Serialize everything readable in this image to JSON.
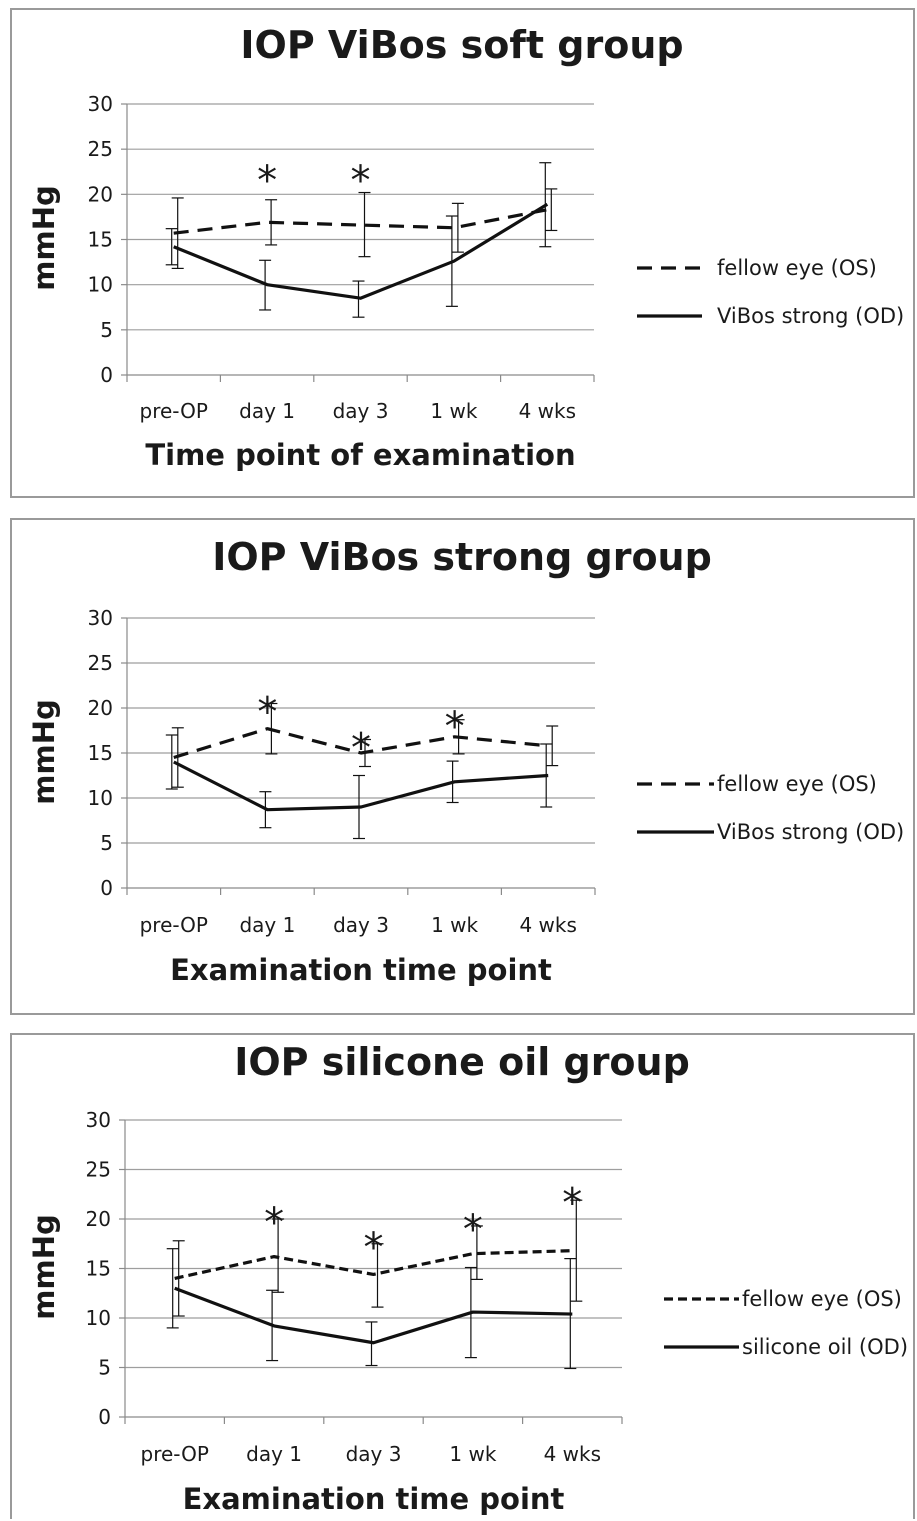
{
  "chart_data": [
    {
      "type": "line",
      "title": "IOP ViBos soft group",
      "xlabel": "Time point of examination",
      "ylabel": "mmHg",
      "categories": [
        "pre-OP",
        "day 1",
        "day 3",
        "1 wk",
        "4 wks"
      ],
      "ylim": [
        0,
        30
      ],
      "yticks": [
        "0",
        "5",
        "10",
        "15",
        "20",
        "25",
        "30"
      ],
      "grid": true,
      "legend": "right",
      "series": [
        {
          "name": "fellow eye (OS)",
          "style": "dashed",
          "values": [
            15.7,
            16.9,
            16.6,
            16.3,
            18.3
          ],
          "err_low": [
            11.8,
            14.4,
            13.1,
            13.6,
            16.0
          ],
          "err_high": [
            19.6,
            19.4,
            20.2,
            19.0,
            20.6
          ]
        },
        {
          "name": "ViBos strong (OD)",
          "style": "solid",
          "values": [
            14.2,
            10.0,
            8.5,
            12.6,
            18.9
          ],
          "err_low": [
            12.2,
            7.2,
            6.4,
            7.6,
            14.2
          ],
          "err_high": [
            16.2,
            12.7,
            10.4,
            17.6,
            23.5
          ]
        }
      ],
      "annotations": [
        {
          "label": "*",
          "category": "day 1",
          "y": 22.5
        },
        {
          "label": "*",
          "category": "day 3",
          "y": 22.5
        }
      ]
    },
    {
      "type": "line",
      "title": "IOP ViBos strong group",
      "xlabel": "Examination time point",
      "ylabel": "mmHg",
      "categories": [
        "pre-OP",
        "day 1",
        "day 3",
        "1 wk",
        "4 wks"
      ],
      "ylim": [
        0,
        30
      ],
      "yticks": [
        "0",
        "5",
        "10",
        "15",
        "20",
        "25",
        "30"
      ],
      "grid": true,
      "legend": "right",
      "series": [
        {
          "name": "fellow eye (OS)",
          "style": "dashed",
          "values": [
            14.5,
            17.7,
            15.0,
            16.8,
            15.8
          ],
          "err_low": [
            11.2,
            14.9,
            13.5,
            14.9,
            13.6
          ],
          "err_high": [
            17.8,
            20.5,
            16.5,
            18.7,
            18.0
          ]
        },
        {
          "name": "ViBos strong (OD)",
          "style": "solid",
          "values": [
            14.0,
            8.7,
            9.0,
            11.8,
            12.5
          ],
          "err_low": [
            11.0,
            6.7,
            5.5,
            9.5,
            9.0
          ],
          "err_high": [
            17.0,
            10.7,
            12.5,
            14.1,
            16.0
          ]
        }
      ],
      "annotations": [
        {
          "label": "*",
          "category": "day 1",
          "y": 20.5
        },
        {
          "label": "*",
          "category": "day 3",
          "y": 16.5
        },
        {
          "label": "*",
          "category": "1 wk",
          "y": 18.9
        }
      ]
    },
    {
      "type": "line",
      "title": "IOP silicone oil group",
      "xlabel": "Examination time point",
      "ylabel": "mmHg",
      "categories": [
        "pre-OP",
        "day 1",
        "day 3",
        "1 wk",
        "4 wks"
      ],
      "ylim": [
        0,
        30
      ],
      "yticks": [
        "0",
        "5",
        "10",
        "15",
        "20",
        "25",
        "30"
      ],
      "grid": true,
      "legend": "right",
      "series": [
        {
          "name": "fellow eye (OS)",
          "style": "dashed",
          "values": [
            14.0,
            16.2,
            14.4,
            16.5,
            16.8
          ],
          "err_low": [
            10.2,
            12.6,
            11.1,
            13.9,
            11.7
          ],
          "err_high": [
            17.8,
            20.0,
            17.5,
            19.3,
            21.9
          ]
        },
        {
          "name": "silicone oil (OD)",
          "style": "solid",
          "values": [
            13.0,
            9.2,
            7.5,
            10.6,
            10.4
          ],
          "err_low": [
            9.0,
            5.7,
            5.2,
            6.0,
            4.9
          ],
          "err_high": [
            17.0,
            12.8,
            9.6,
            15.1,
            16.0
          ]
        }
      ],
      "annotations": [
        {
          "label": "*",
          "category": "day 1",
          "y": 20.5
        },
        {
          "label": "*",
          "category": "day 3",
          "y": 18.0
        },
        {
          "label": "*",
          "category": "1 wk",
          "y": 19.8
        },
        {
          "label": "*",
          "category": "4 wks",
          "y": 22.5
        }
      ]
    }
  ]
}
